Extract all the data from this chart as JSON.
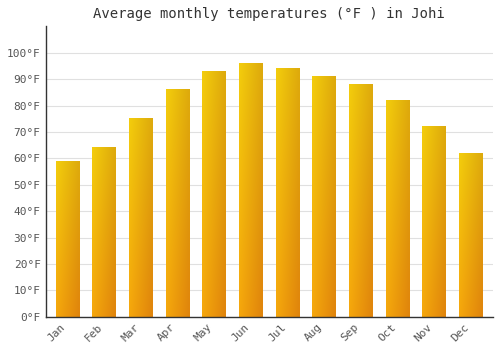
{
  "title": "Average monthly temperatures (°F ) in Johi",
  "months": [
    "Jan",
    "Feb",
    "Mar",
    "Apr",
    "May",
    "Jun",
    "Jul",
    "Aug",
    "Sep",
    "Oct",
    "Nov",
    "Dec"
  ],
  "values": [
    59,
    64,
    75,
    86,
    93,
    96,
    94,
    91,
    88,
    82,
    72,
    62
  ],
  "bar_color_bottom": "#F5A800",
  "bar_color_top": "#FFD966",
  "bar_color_left": "#FFD050",
  "bar_color_right": "#F5A000",
  "background_color": "#FFFFFF",
  "grid_color": "#E0E0E0",
  "axis_line_color": "#333333",
  "ylim": [
    0,
    110
  ],
  "yticks": [
    0,
    10,
    20,
    30,
    40,
    50,
    60,
    70,
    80,
    90,
    100
  ],
  "ytick_labels": [
    "0°F",
    "10°F",
    "20°F",
    "30°F",
    "40°F",
    "50°F",
    "60°F",
    "70°F",
    "80°F",
    "90°F",
    "100°F"
  ],
  "title_fontsize": 10,
  "tick_fontsize": 8,
  "font_family": "monospace"
}
